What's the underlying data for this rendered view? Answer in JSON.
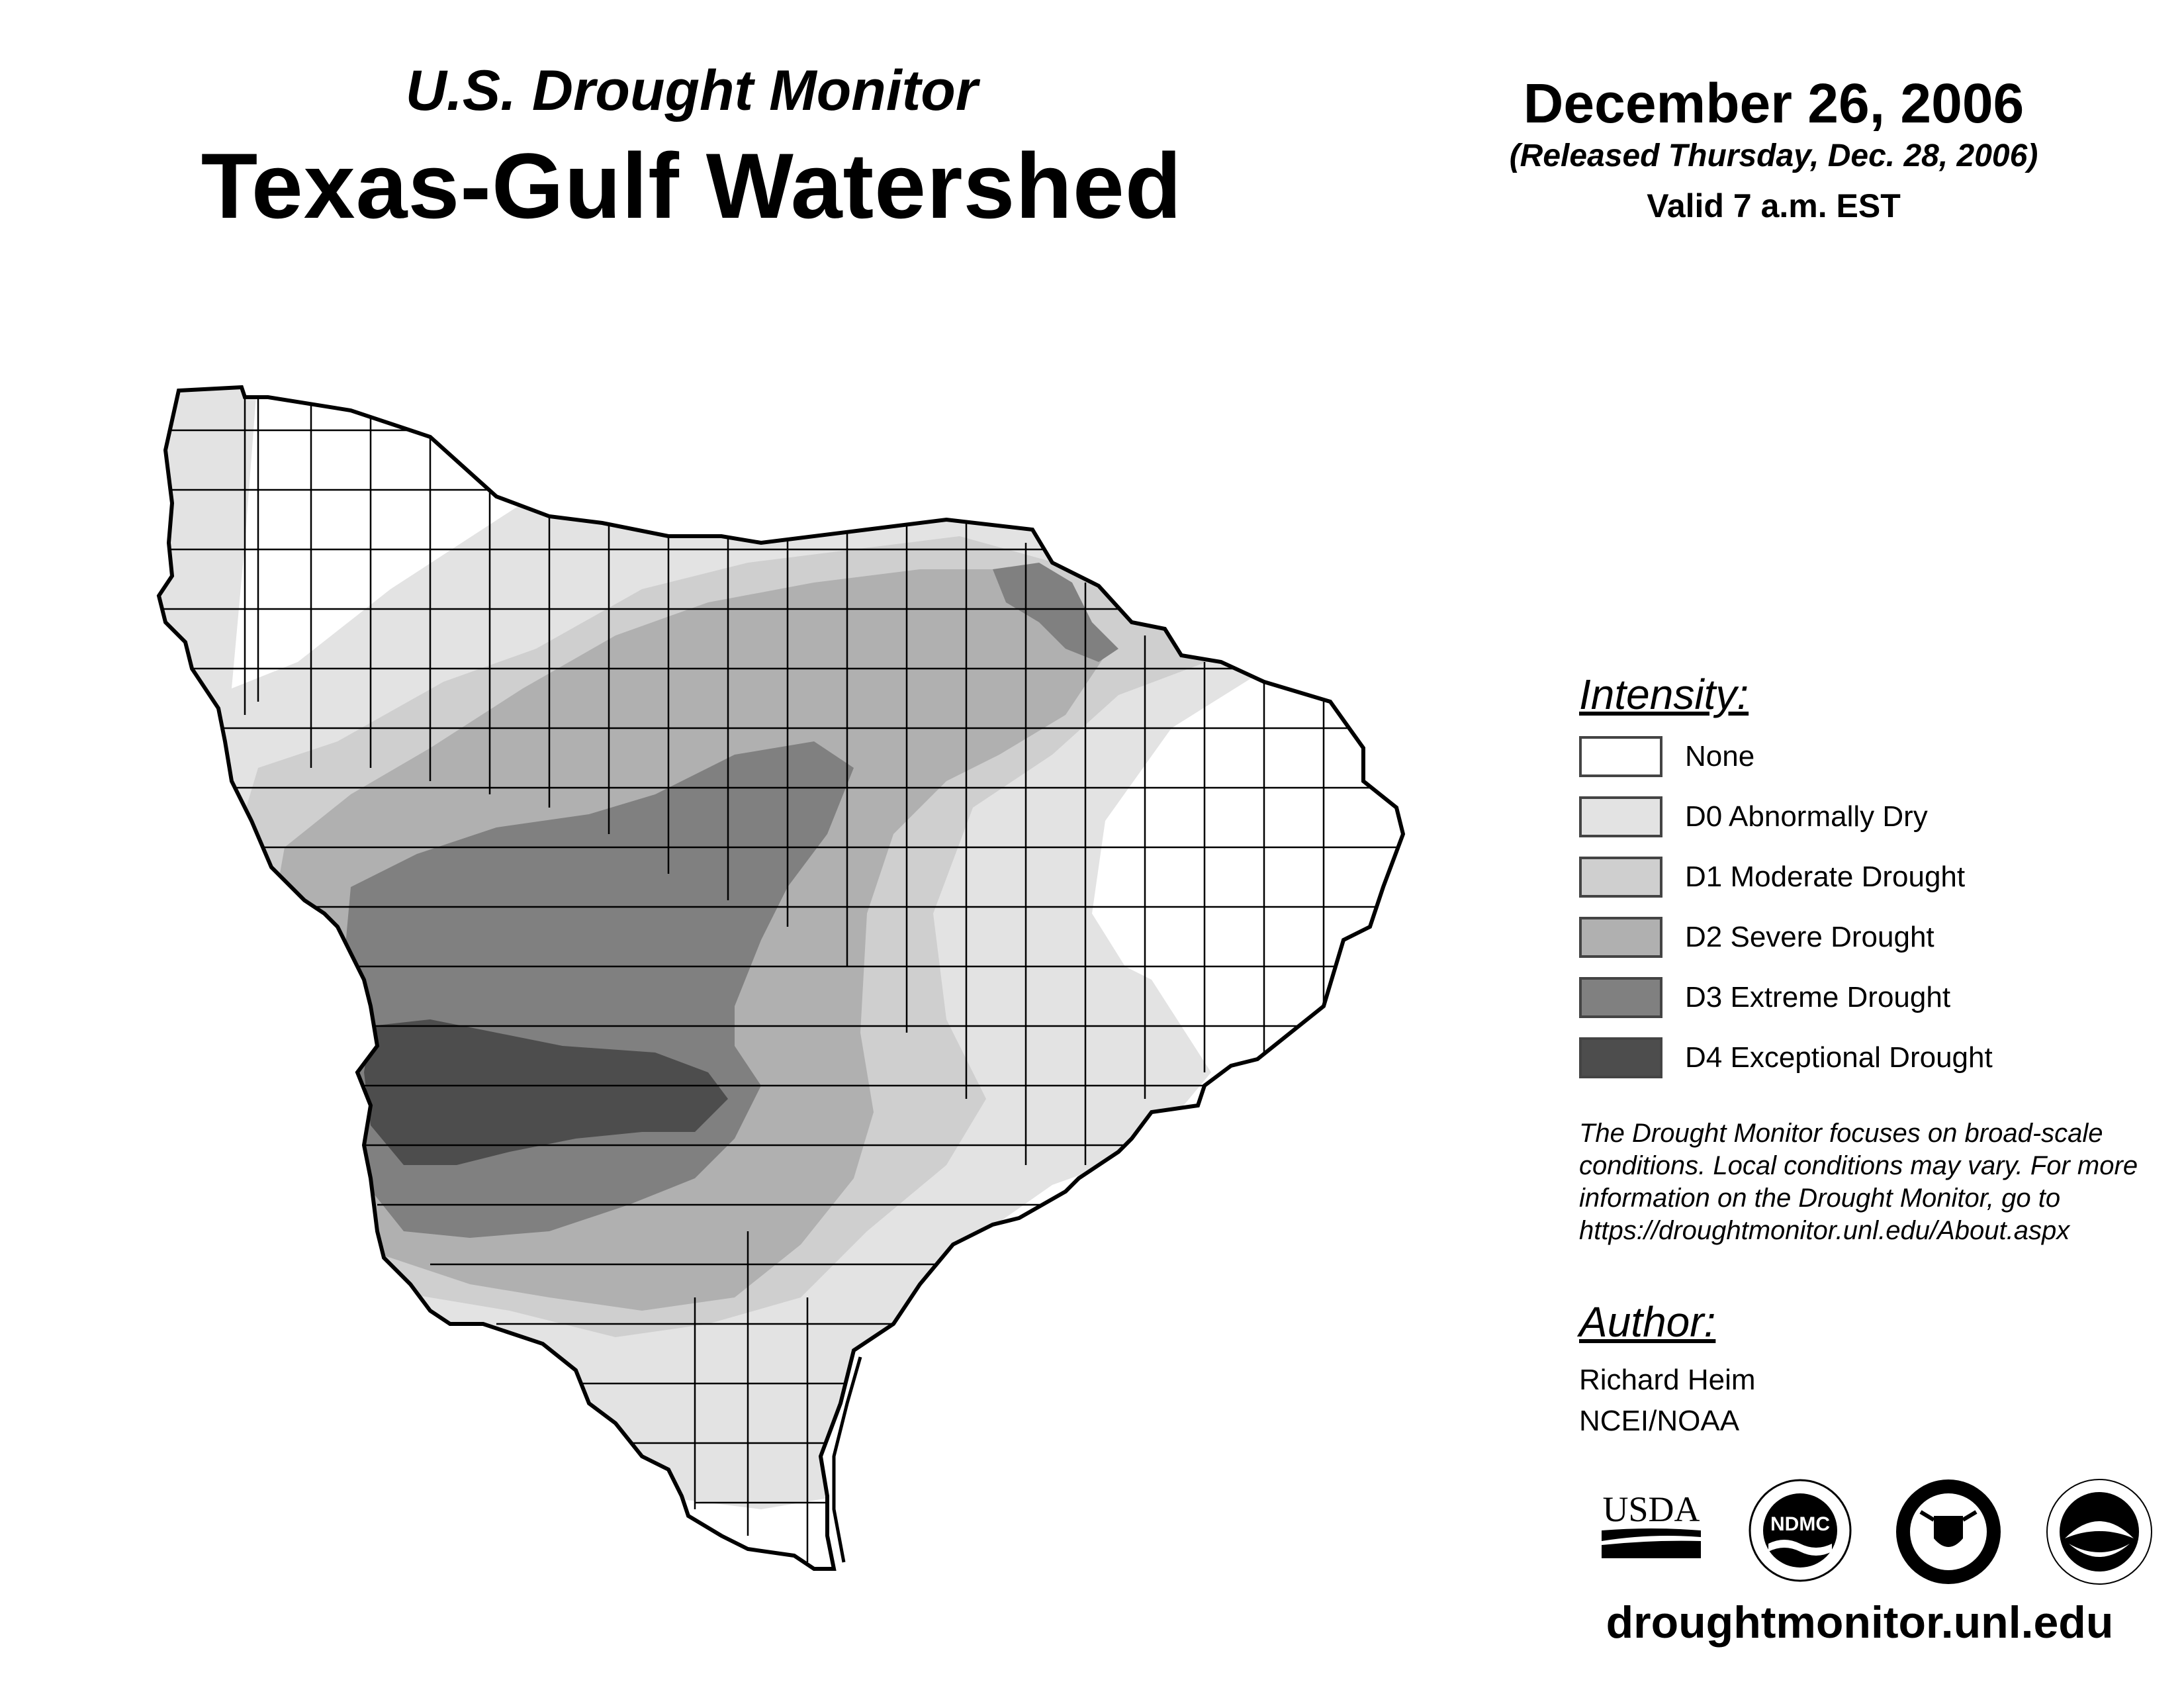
{
  "header": {
    "subtitle": "U.S. Drought Monitor",
    "title": "Texas-Gulf Watershed",
    "date": "December 26, 2006",
    "released": "(Released Thursday, Dec. 28, 2006)",
    "valid": "Valid 7 a.m. EST"
  },
  "legend": {
    "heading": "Intensity:",
    "items": [
      {
        "label": "None",
        "color": "#ffffff"
      },
      {
        "label": "D0 Abnormally Dry",
        "color": "#e3e3e3"
      },
      {
        "label": "D1 Moderate Drought",
        "color": "#cfcfcf"
      },
      {
        "label": "D2 Severe Drought",
        "color": "#b0b0b0"
      },
      {
        "label": "D3 Extreme Drought",
        "color": "#808080"
      },
      {
        "label": "D4 Exceptional Drought",
        "color": "#4d4d4d"
      }
    ]
  },
  "note": {
    "lines": [
      "The Drought Monitor focuses on broad-scale",
      "conditions. Local conditions may vary. For more",
      "information on the Drought Monitor, go to",
      "https://droughtmonitor.unl.edu/About.aspx"
    ]
  },
  "author": {
    "heading": "Author:",
    "name": "Richard Heim",
    "org": "NCEI/NOAA"
  },
  "logos": {
    "usda": "USDA",
    "ndmc": "NDMC"
  },
  "footer": {
    "website": "droughtmonitor.unl.edu"
  }
}
